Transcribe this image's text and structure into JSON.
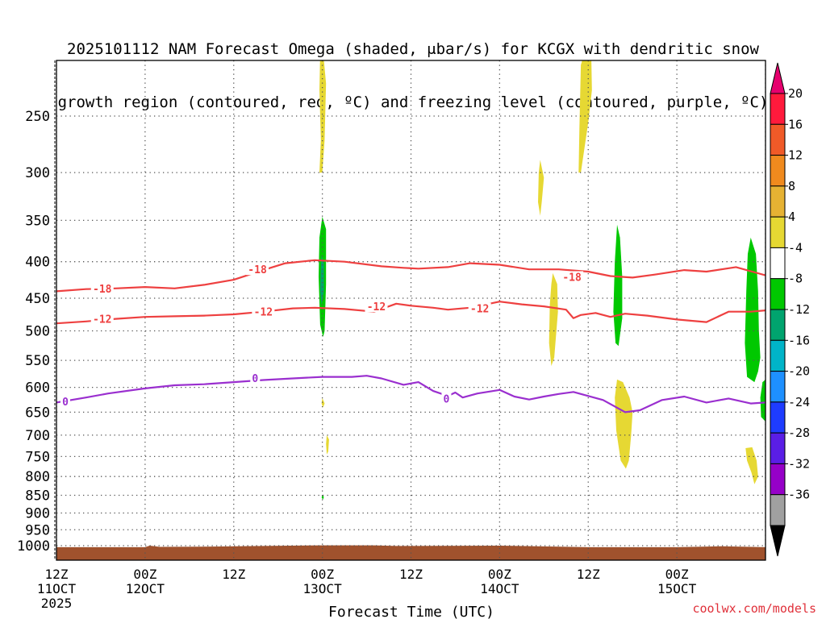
{
  "title_line1": "2025101112 NAM Forecast Omega (shaded, μbar/s) for KCGX with dendritic snow",
  "title_line2": "growth region (contoured, red, ºC) and freezing level (contoured, purple, ºC)",
  "credit": "coolwx.com/models",
  "chart_data": {
    "type": "time-height cross section",
    "title": "2025101112 NAM Forecast Omega (shaded, μbar/s) for KCGX with dendritic snow growth region (contoured, red, ºC) and freezing level (contoured, purple, ºC)",
    "xlabel": "Forecast Time (UTC)",
    "ylabel": "",
    "x_range_hours": [
      0,
      96
    ],
    "y_range_hPa": [
      200,
      1050
    ],
    "x_ticks": [
      {
        "hour": 0,
        "line1": "12Z",
        "line2": "11OCT",
        "line3": "2025"
      },
      {
        "hour": 12,
        "line1": "00Z",
        "line2": "12OCT",
        "line3": ""
      },
      {
        "hour": 24,
        "line1": "12Z",
        "line2": "",
        "line3": ""
      },
      {
        "hour": 36,
        "line1": "00Z",
        "line2": "13OCT",
        "line3": ""
      },
      {
        "hour": 48,
        "line1": "12Z",
        "line2": "",
        "line3": ""
      },
      {
        "hour": 60,
        "line1": "00Z",
        "line2": "14OCT",
        "line3": ""
      },
      {
        "hour": 72,
        "line1": "12Z",
        "line2": "",
        "line3": ""
      },
      {
        "hour": 84,
        "line1": "00Z",
        "line2": "15OCT",
        "line3": ""
      }
    ],
    "x_grid_hours": [
      0,
      12,
      24,
      36,
      48,
      60,
      72,
      84,
      96
    ],
    "y_ticks": [
      250,
      300,
      350,
      400,
      450,
      500,
      550,
      600,
      650,
      700,
      750,
      800,
      850,
      900,
      950,
      1000
    ],
    "colorbar": {
      "labels": [
        20,
        16,
        12,
        8,
        4,
        -4,
        -8,
        -12,
        -16,
        -20,
        -24,
        -28,
        -32,
        -36
      ],
      "colors": [
        "#ff1a3c",
        "#f05a28",
        "#f08a1e",
        "#e6b233",
        "#e6d833",
        "#ffffff",
        "#00c800",
        "#00a46e",
        "#00b4c8",
        "#1e90ff",
        "#1e3cff",
        "#5a1ee6",
        "#9600c8",
        "#a0a0a0"
      ],
      "top_color": "#e6006e",
      "bottom_color": "#000000"
    },
    "contours": [
      {
        "label": "-18",
        "color": "#ee4040",
        "points": [
          [
            0,
            440
          ],
          [
            4,
            437
          ],
          [
            8,
            436
          ],
          [
            12,
            434
          ],
          [
            16,
            436
          ],
          [
            20,
            431
          ],
          [
            24,
            424
          ],
          [
            28,
            411
          ],
          [
            31,
            402
          ],
          [
            35,
            398
          ],
          [
            39,
            400
          ],
          [
            44,
            406
          ],
          [
            47,
            408
          ],
          [
            49,
            409
          ],
          [
            53,
            407
          ],
          [
            56,
            402
          ],
          [
            60,
            404
          ],
          [
            64,
            410
          ],
          [
            68,
            410
          ],
          [
            72,
            413
          ],
          [
            75,
            419
          ],
          [
            78,
            421
          ],
          [
            81,
            417
          ],
          [
            85,
            411
          ],
          [
            88,
            413
          ],
          [
            92,
            407
          ],
          [
            96,
            418
          ]
        ]
      },
      {
        "label": "-12",
        "color": "#ee4040",
        "points": [
          [
            0,
            488
          ],
          [
            4,
            485
          ],
          [
            8,
            481
          ],
          [
            12,
            478
          ],
          [
            16,
            477
          ],
          [
            20,
            476
          ],
          [
            24,
            474
          ],
          [
            28,
            470
          ],
          [
            32,
            465
          ],
          [
            35,
            464
          ],
          [
            39,
            466
          ],
          [
            43,
            470
          ],
          [
            46,
            458
          ],
          [
            48,
            461
          ],
          [
            51,
            464
          ],
          [
            53,
            467
          ],
          [
            56,
            464
          ],
          [
            60,
            455
          ],
          [
            63,
            459
          ],
          [
            66,
            462
          ],
          [
            69,
            467
          ],
          [
            70,
            480
          ],
          [
            71,
            475
          ],
          [
            73,
            472
          ],
          [
            75,
            478
          ],
          [
            77,
            473
          ],
          [
            80,
            476
          ],
          [
            84,
            482
          ],
          [
            86,
            484
          ],
          [
            88,
            486
          ],
          [
            91,
            470
          ],
          [
            94,
            470
          ],
          [
            96,
            468
          ]
        ]
      },
      {
        "label": "0",
        "color": "#9a2fcf",
        "points": [
          [
            0,
            630
          ],
          [
            4,
            620
          ],
          [
            7,
            612
          ],
          [
            12,
            602
          ],
          [
            16,
            596
          ],
          [
            20,
            594
          ],
          [
            24,
            590
          ],
          [
            28,
            586
          ],
          [
            32,
            583
          ],
          [
            36,
            580
          ],
          [
            40,
            580
          ],
          [
            42,
            578
          ],
          [
            44,
            583
          ],
          [
            47,
            595
          ],
          [
            49,
            590
          ],
          [
            51,
            607
          ],
          [
            53,
            617
          ],
          [
            54,
            610
          ],
          [
            55,
            620
          ],
          [
            57,
            612
          ],
          [
            60,
            605
          ],
          [
            62,
            618
          ],
          [
            64,
            624
          ],
          [
            66,
            618
          ],
          [
            68,
            613
          ],
          [
            70,
            609
          ],
          [
            72,
            617
          ],
          [
            74,
            625
          ],
          [
            77,
            650
          ],
          [
            79,
            646
          ],
          [
            82,
            625
          ],
          [
            85,
            618
          ],
          [
            88,
            630
          ],
          [
            91,
            622
          ],
          [
            94,
            632
          ],
          [
            96,
            630
          ]
        ]
      }
    ],
    "contour_labels": [
      {
        "text": "-18",
        "hour": 6.2,
        "hPa": 436
      },
      {
        "text": "-18",
        "hour": 27.2,
        "hPa": 410
      },
      {
        "text": "-18",
        "hour": 69.8,
        "hPa": 420
      },
      {
        "text": "-12",
        "hour": 6.2,
        "hPa": 481
      },
      {
        "text": "-12",
        "hour": 28,
        "hPa": 470
      },
      {
        "text": "-12",
        "hour": 43.3,
        "hPa": 462
      },
      {
        "text": "-12",
        "hour": 57.3,
        "hPa": 465
      },
      {
        "text": "0",
        "hour": 1.2,
        "hPa": 628
      },
      {
        "text": "0",
        "hour": 26.9,
        "hPa": 582
      },
      {
        "text": "0",
        "hour": 52.8,
        "hPa": 622
      }
    ],
    "shaded_regions": [
      {
        "category": "4 to 8",
        "color": "#e6d833",
        "polygon": [
          [
            35.7,
            205
          ],
          [
            36.1,
            203
          ],
          [
            36.5,
            225
          ],
          [
            36.3,
            270
          ],
          [
            36.0,
            300
          ],
          [
            35.6,
            300
          ],
          [
            35.8,
            270
          ],
          [
            35.6,
            230
          ]
        ]
      },
      {
        "category": "4 to 8",
        "color": "#e6d833",
        "polygon": [
          [
            71.0,
            212
          ],
          [
            71.6,
            202
          ],
          [
            72.4,
            202
          ],
          [
            72.5,
            230
          ],
          [
            72.0,
            255
          ],
          [
            71.0,
            300
          ],
          [
            70.7,
            300
          ],
          [
            70.8,
            260
          ]
        ]
      },
      {
        "category": "4 to 8",
        "color": "#e6d833",
        "polygon": [
          [
            65.5,
            288
          ],
          [
            66.0,
            305
          ],
          [
            65.7,
            330
          ],
          [
            65.5,
            345
          ],
          [
            65.2,
            330
          ],
          [
            65.3,
            300
          ]
        ]
      },
      {
        "category": "-8 to -4",
        "color": "#00c800",
        "polygon": [
          [
            36.0,
            346
          ],
          [
            36.5,
            360
          ],
          [
            36.5,
            430
          ],
          [
            36.3,
            500
          ],
          [
            36.1,
            510
          ],
          [
            35.7,
            490
          ],
          [
            35.5,
            420
          ],
          [
            35.6,
            370
          ]
        ]
      },
      {
        "category": "-12 to -8",
        "color": "#00a46e",
        "polygon": [
          [
            35.9,
            392
          ],
          [
            36.2,
            402
          ],
          [
            36.2,
            440
          ],
          [
            35.9,
            460
          ],
          [
            35.7,
            440
          ],
          [
            35.8,
            408
          ]
        ]
      },
      {
        "category": "4 to 8",
        "color": "#e6d833",
        "polygon": [
          [
            36.0,
            621
          ],
          [
            36.3,
            632
          ],
          [
            36.1,
            640
          ],
          [
            35.9,
            632
          ]
        ]
      },
      {
        "category": "4 to 8",
        "color": "#e6d833",
        "polygon": [
          [
            36.6,
            700
          ],
          [
            36.9,
            710
          ],
          [
            36.8,
            738
          ],
          [
            36.6,
            745
          ],
          [
            36.5,
            720
          ]
        ]
      },
      {
        "category": "-8 to -4",
        "color": "#00c800",
        "polygon": [
          [
            36.0,
            850
          ],
          [
            36.2,
            854
          ],
          [
            36.1,
            862
          ],
          [
            35.9,
            856
          ]
        ]
      },
      {
        "category": "4 to 8",
        "color": "#e6d833",
        "polygon": [
          [
            67.2,
            415
          ],
          [
            67.8,
            430
          ],
          [
            67.9,
            470
          ],
          [
            67.4,
            545
          ],
          [
            67.0,
            560
          ],
          [
            66.7,
            520
          ],
          [
            66.8,
            460
          ],
          [
            67.0,
            430
          ]
        ]
      },
      {
        "category": "-8 to -4",
        "color": "#00c800",
        "polygon": [
          [
            75.9,
            355
          ],
          [
            76.3,
            370
          ],
          [
            76.6,
            420
          ],
          [
            76.6,
            480
          ],
          [
            76.1,
            525
          ],
          [
            75.7,
            520
          ],
          [
            75.4,
            470
          ],
          [
            75.6,
            400
          ]
        ]
      },
      {
        "category": "4 to 8",
        "color": "#e6d833",
        "polygon": [
          [
            75.9,
            585
          ],
          [
            76.7,
            590
          ],
          [
            77.6,
            620
          ],
          [
            78.0,
            650
          ],
          [
            77.8,
            700
          ],
          [
            77.5,
            760
          ],
          [
            77.1,
            780
          ],
          [
            76.4,
            760
          ],
          [
            75.8,
            690
          ],
          [
            75.6,
            620
          ]
        ]
      },
      {
        "category": "-8 to -4",
        "color": "#00c800",
        "polygon": [
          [
            94.0,
            370
          ],
          [
            94.7,
            390
          ],
          [
            95.0,
            440
          ],
          [
            95.1,
            500
          ],
          [
            95.3,
            545
          ],
          [
            95.0,
            570
          ],
          [
            94.5,
            590
          ],
          [
            93.5,
            580
          ],
          [
            93.2,
            520
          ],
          [
            93.4,
            440
          ],
          [
            93.6,
            390
          ]
        ]
      },
      {
        "category": "-8 to -4",
        "color": "#00c800",
        "polygon": [
          [
            95.6,
            590
          ],
          [
            96,
            585
          ],
          [
            96,
            670
          ],
          [
            95.4,
            660
          ],
          [
            95.3,
            620
          ]
        ]
      },
      {
        "category": "4 to 8",
        "color": "#e6d833",
        "polygon": [
          [
            93.3,
            730
          ],
          [
            94.2,
            728
          ],
          [
            94.8,
            760
          ],
          [
            95.0,
            800
          ],
          [
            94.5,
            820
          ],
          [
            94.1,
            790
          ],
          [
            93.5,
            760
          ]
        ]
      }
    ],
    "terrain": {
      "color": "#a0522d",
      "surface_hPa": [
        [
          0,
          1005
        ],
        [
          12,
          1005
        ],
        [
          12.6,
          1000
        ],
        [
          14,
          1004
        ],
        [
          20,
          1003
        ],
        [
          28,
          1001
        ],
        [
          36,
          999
        ],
        [
          43,
          999
        ],
        [
          46,
          1001
        ],
        [
          60,
          1000
        ],
        [
          72,
          1005
        ],
        [
          84,
          1005
        ],
        [
          90,
          1002
        ],
        [
          96,
          1005
        ]
      ]
    }
  }
}
